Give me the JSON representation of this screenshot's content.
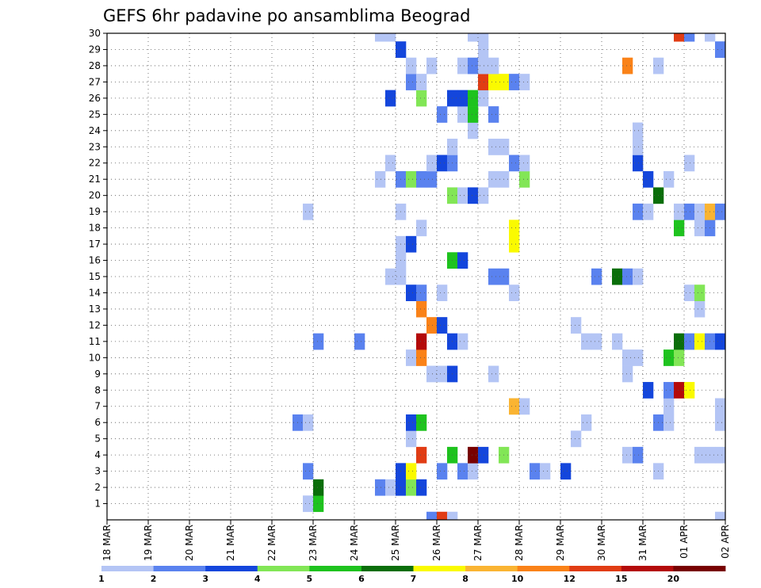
{
  "chart_data": {
    "type": "heatmap",
    "title": "GEFS 6hr padavine po ansamblima Beograd",
    "y_ticks": [
      "1",
      "2",
      "3",
      "4",
      "5",
      "6",
      "7",
      "8",
      "9",
      "10",
      "11",
      "12",
      "13",
      "14",
      "15",
      "16",
      "17",
      "18",
      "19",
      "20",
      "21",
      "22",
      "23",
      "24",
      "25",
      "26",
      "27",
      "28",
      "29",
      "30"
    ],
    "x_ticks": [
      "18 MAR",
      "19 MAR",
      "20 MAR",
      "21 MAR",
      "22 MAR",
      "23 MAR",
      "24 MAR",
      "25 MAR",
      "26 MAR",
      "27 MAR",
      "28 MAR",
      "29 MAR",
      "30 MAR",
      "31 MAR",
      "01 APR",
      "02 APR"
    ],
    "x_range": [
      0,
      15
    ],
    "y_range": [
      0,
      30
    ],
    "step_days": 0.25,
    "grid": "dotted",
    "colorbar": {
      "labels": [
        "1",
        "2",
        "3",
        "4",
        "5",
        "6",
        "7",
        "8",
        "10",
        "12",
        "15",
        "20"
      ],
      "colors": [
        "#b4c5f5",
        "#5a82ef",
        "#1446dc",
        "#82e656",
        "#1ec31e",
        "#0a6e0a",
        "#fafa00",
        "#fab432",
        "#fa8218",
        "#e13c14",
        "#b40a0a",
        "#780000"
      ]
    },
    "cells": [
      {
        "m": 0,
        "t": 7.75,
        "c": 2
      },
      {
        "m": 0,
        "t": 8.0,
        "c": 10
      },
      {
        "m": 0,
        "t": 8.25,
        "c": 1
      },
      {
        "m": 0,
        "t": 14.75,
        "c": 1
      },
      {
        "m": 1,
        "t": 4.75,
        "c": 1
      },
      {
        "m": 1,
        "t": 5.0,
        "c": 5
      },
      {
        "m": 2,
        "t": 5.0,
        "c": 6
      },
      {
        "m": 2,
        "t": 6.5,
        "c": 2
      },
      {
        "m": 2,
        "t": 6.75,
        "c": 1
      },
      {
        "m": 2,
        "t": 7.0,
        "c": 3
      },
      {
        "m": 2,
        "t": 7.25,
        "c": 4
      },
      {
        "m": 2,
        "t": 7.5,
        "c": 3
      },
      {
        "m": 3,
        "t": 4.75,
        "c": 2
      },
      {
        "m": 3,
        "t": 7.0,
        "c": 3
      },
      {
        "m": 3,
        "t": 7.25,
        "c": 7
      },
      {
        "m": 3,
        "t": 8.0,
        "c": 2
      },
      {
        "m": 3,
        "t": 8.5,
        "c": 2
      },
      {
        "m": 3,
        "t": 8.75,
        "c": 1
      },
      {
        "m": 3,
        "t": 10.25,
        "c": 2
      },
      {
        "m": 3,
        "t": 10.5,
        "c": 1
      },
      {
        "m": 3,
        "t": 11.0,
        "c": 3
      },
      {
        "m": 3,
        "t": 13.25,
        "c": 1
      },
      {
        "m": 4,
        "t": 7.5,
        "c": 10
      },
      {
        "m": 4,
        "t": 8.25,
        "c": 5
      },
      {
        "m": 4,
        "t": 8.75,
        "c": 12
      },
      {
        "m": 4,
        "t": 9.0,
        "c": 3
      },
      {
        "m": 4,
        "t": 9.5,
        "c": 4
      },
      {
        "m": 4,
        "t": 12.5,
        "c": 1
      },
      {
        "m": 4,
        "t": 12.75,
        "c": 2
      },
      {
        "m": 4,
        "t": 14.25,
        "c": 1
      },
      {
        "m": 4,
        "t": 14.5,
        "c": 1
      },
      {
        "m": 4,
        "t": 14.75,
        "c": 1
      },
      {
        "m": 5,
        "t": 7.25,
        "c": 1
      },
      {
        "m": 5,
        "t": 11.25,
        "c": 1
      },
      {
        "m": 6,
        "t": 4.5,
        "c": 2
      },
      {
        "m": 6,
        "t": 4.75,
        "c": 1
      },
      {
        "m": 6,
        "t": 7.25,
        "c": 3
      },
      {
        "m": 6,
        "t": 7.5,
        "c": 5
      },
      {
        "m": 6,
        "t": 11.5,
        "c": 1
      },
      {
        "m": 6,
        "t": 13.25,
        "c": 2
      },
      {
        "m": 6,
        "t": 13.5,
        "c": 1
      },
      {
        "m": 6,
        "t": 14.75,
        "c": 1
      },
      {
        "m": 7,
        "t": 9.75,
        "c": 8
      },
      {
        "m": 7,
        "t": 10.0,
        "c": 1
      },
      {
        "m": 7,
        "t": 13.5,
        "c": 1
      },
      {
        "m": 7,
        "t": 14.75,
        "c": 1
      },
      {
        "m": 8,
        "t": 13.0,
        "c": 3
      },
      {
        "m": 8,
        "t": 13.5,
        "c": 2
      },
      {
        "m": 8,
        "t": 13.75,
        "c": 11
      },
      {
        "m": 8,
        "t": 14.0,
        "c": 7
      },
      {
        "m": 9,
        "t": 7.75,
        "c": 1
      },
      {
        "m": 9,
        "t": 8.0,
        "c": 1
      },
      {
        "m": 9,
        "t": 8.25,
        "c": 3
      },
      {
        "m": 9,
        "t": 9.25,
        "c": 1
      },
      {
        "m": 9,
        "t": 12.5,
        "c": 1
      },
      {
        "m": 10,
        "t": 7.25,
        "c": 1
      },
      {
        "m": 10,
        "t": 7.5,
        "c": 9
      },
      {
        "m": 10,
        "t": 12.5,
        "c": 1
      },
      {
        "m": 10,
        "t": 12.75,
        "c": 1
      },
      {
        "m": 10,
        "t": 13.5,
        "c": 5
      },
      {
        "m": 10,
        "t": 13.75,
        "c": 4
      },
      {
        "m": 11,
        "t": 5.0,
        "c": 2
      },
      {
        "m": 11,
        "t": 6.0,
        "c": 2
      },
      {
        "m": 11,
        "t": 7.5,
        "c": 11
      },
      {
        "m": 11,
        "t": 8.25,
        "c": 3
      },
      {
        "m": 11,
        "t": 8.5,
        "c": 1
      },
      {
        "m": 11,
        "t": 11.5,
        "c": 1
      },
      {
        "m": 11,
        "t": 11.75,
        "c": 1
      },
      {
        "m": 11,
        "t": 12.25,
        "c": 1
      },
      {
        "m": 11,
        "t": 13.75,
        "c": 6
      },
      {
        "m": 11,
        "t": 14.0,
        "c": 2
      },
      {
        "m": 11,
        "t": 14.25,
        "c": 7
      },
      {
        "m": 11,
        "t": 14.5,
        "c": 2
      },
      {
        "m": 11,
        "t": 14.75,
        "c": 3
      },
      {
        "m": 12,
        "t": 7.75,
        "c": 9
      },
      {
        "m": 12,
        "t": 8.0,
        "c": 3
      },
      {
        "m": 12,
        "t": 11.25,
        "c": 1
      },
      {
        "m": 13,
        "t": 7.5,
        "c": 9
      },
      {
        "m": 13,
        "t": 14.25,
        "c": 1
      },
      {
        "m": 14,
        "t": 7.25,
        "c": 3
      },
      {
        "m": 14,
        "t": 7.5,
        "c": 2
      },
      {
        "m": 14,
        "t": 8.0,
        "c": 1
      },
      {
        "m": 14,
        "t": 9.75,
        "c": 1
      },
      {
        "m": 14,
        "t": 14.0,
        "c": 1
      },
      {
        "m": 14,
        "t": 14.25,
        "c": 4
      },
      {
        "m": 15,
        "t": 6.75,
        "c": 1
      },
      {
        "m": 15,
        "t": 7.0,
        "c": 1
      },
      {
        "m": 15,
        "t": 9.25,
        "c": 2
      },
      {
        "m": 15,
        "t": 9.5,
        "c": 2
      },
      {
        "m": 15,
        "t": 11.75,
        "c": 2
      },
      {
        "m": 15,
        "t": 12.25,
        "c": 6
      },
      {
        "m": 15,
        "t": 12.5,
        "c": 2
      },
      {
        "m": 15,
        "t": 12.75,
        "c": 1
      },
      {
        "m": 16,
        "t": 7.0,
        "c": 1
      },
      {
        "m": 16,
        "t": 8.25,
        "c": 5
      },
      {
        "m": 16,
        "t": 8.5,
        "c": 3
      },
      {
        "m": 17,
        "t": 7.0,
        "c": 1
      },
      {
        "m": 17,
        "t": 7.25,
        "c": 3
      },
      {
        "m": 17,
        "t": 9.75,
        "c": 7
      },
      {
        "m": 18,
        "t": 7.5,
        "c": 1
      },
      {
        "m": 18,
        "t": 9.75,
        "c": 7
      },
      {
        "m": 18,
        "t": 13.75,
        "c": 5
      },
      {
        "m": 18,
        "t": 14.25,
        "c": 1
      },
      {
        "m": 18,
        "t": 14.5,
        "c": 2
      },
      {
        "m": 19,
        "t": 4.75,
        "c": 1
      },
      {
        "m": 19,
        "t": 7.0,
        "c": 1
      },
      {
        "m": 19,
        "t": 12.75,
        "c": 2
      },
      {
        "m": 19,
        "t": 13.0,
        "c": 1
      },
      {
        "m": 19,
        "t": 13.75,
        "c": 1
      },
      {
        "m": 19,
        "t": 14.0,
        "c": 2
      },
      {
        "m": 19,
        "t": 14.25,
        "c": 1
      },
      {
        "m": 19,
        "t": 14.5,
        "c": 8
      },
      {
        "m": 19,
        "t": 14.75,
        "c": 2
      },
      {
        "m": 20,
        "t": 8.25,
        "c": 4
      },
      {
        "m": 20,
        "t": 8.5,
        "c": 1
      },
      {
        "m": 20,
        "t": 8.75,
        "c": 3
      },
      {
        "m": 20,
        "t": 9.0,
        "c": 1
      },
      {
        "m": 20,
        "t": 13.25,
        "c": 6
      },
      {
        "m": 21,
        "t": 6.5,
        "c": 1
      },
      {
        "m": 21,
        "t": 7.0,
        "c": 2
      },
      {
        "m": 21,
        "t": 7.25,
        "c": 4
      },
      {
        "m": 21,
        "t": 7.5,
        "c": 2
      },
      {
        "m": 21,
        "t": 7.75,
        "c": 2
      },
      {
        "m": 21,
        "t": 9.25,
        "c": 1
      },
      {
        "m": 21,
        "t": 9.5,
        "c": 1
      },
      {
        "m": 21,
        "t": 10.0,
        "c": 4
      },
      {
        "m": 21,
        "t": 13.0,
        "c": 3
      },
      {
        "m": 21,
        "t": 13.5,
        "c": 1
      },
      {
        "m": 22,
        "t": 6.75,
        "c": 1
      },
      {
        "m": 22,
        "t": 7.75,
        "c": 1
      },
      {
        "m": 22,
        "t": 8.0,
        "c": 3
      },
      {
        "m": 22,
        "t": 8.25,
        "c": 2
      },
      {
        "m": 22,
        "t": 9.75,
        "c": 2
      },
      {
        "m": 22,
        "t": 10.0,
        "c": 1
      },
      {
        "m": 22,
        "t": 12.75,
        "c": 3
      },
      {
        "m": 22,
        "t": 14.0,
        "c": 1
      },
      {
        "m": 23,
        "t": 8.25,
        "c": 1
      },
      {
        "m": 23,
        "t": 9.25,
        "c": 1
      },
      {
        "m": 23,
        "t": 9.5,
        "c": 1
      },
      {
        "m": 23,
        "t": 12.75,
        "c": 1
      },
      {
        "m": 24,
        "t": 8.75,
        "c": 1
      },
      {
        "m": 24,
        "t": 12.75,
        "c": 1
      },
      {
        "m": 25,
        "t": 8.0,
        "c": 2
      },
      {
        "m": 25,
        "t": 8.5,
        "c": 1
      },
      {
        "m": 25,
        "t": 8.75,
        "c": 5
      },
      {
        "m": 25,
        "t": 9.25,
        "c": 2
      },
      {
        "m": 26,
        "t": 6.75,
        "c": 3
      },
      {
        "m": 26,
        "t": 7.5,
        "c": 4
      },
      {
        "m": 26,
        "t": 8.25,
        "c": 3
      },
      {
        "m": 26,
        "t": 8.5,
        "c": 3
      },
      {
        "m": 26,
        "t": 8.75,
        "c": 5
      },
      {
        "m": 26,
        "t": 9.0,
        "c": 1
      },
      {
        "m": 27,
        "t": 7.25,
        "c": 2
      },
      {
        "m": 27,
        "t": 7.5,
        "c": 1
      },
      {
        "m": 27,
        "t": 9.0,
        "c": 10
      },
      {
        "m": 27,
        "t": 9.25,
        "c": 7
      },
      {
        "m": 27,
        "t": 9.5,
        "c": 7
      },
      {
        "m": 27,
        "t": 9.75,
        "c": 2
      },
      {
        "m": 27,
        "t": 10.0,
        "c": 1
      },
      {
        "m": 28,
        "t": 7.25,
        "c": 1
      },
      {
        "m": 28,
        "t": 7.75,
        "c": 1
      },
      {
        "m": 28,
        "t": 8.5,
        "c": 1
      },
      {
        "m": 28,
        "t": 8.75,
        "c": 2
      },
      {
        "m": 28,
        "t": 9.0,
        "c": 1
      },
      {
        "m": 28,
        "t": 9.25,
        "c": 1
      },
      {
        "m": 28,
        "t": 12.5,
        "c": 9
      },
      {
        "m": 28,
        "t": 13.25,
        "c": 1
      },
      {
        "m": 29,
        "t": 7.0,
        "c": 3
      },
      {
        "m": 29,
        "t": 9.0,
        "c": 1
      },
      {
        "m": 29,
        "t": 14.75,
        "c": 2
      },
      {
        "m": 30,
        "t": 6.5,
        "c": 1
      },
      {
        "m": 30,
        "t": 6.75,
        "c": 1
      },
      {
        "m": 30,
        "t": 8.75,
        "c": 1
      },
      {
        "m": 30,
        "t": 9.0,
        "c": 1
      },
      {
        "m": 30,
        "t": 13.75,
        "c": 10
      },
      {
        "m": 30,
        "t": 14.0,
        "c": 2
      },
      {
        "m": 30,
        "t": 14.5,
        "c": 1
      }
    ]
  }
}
